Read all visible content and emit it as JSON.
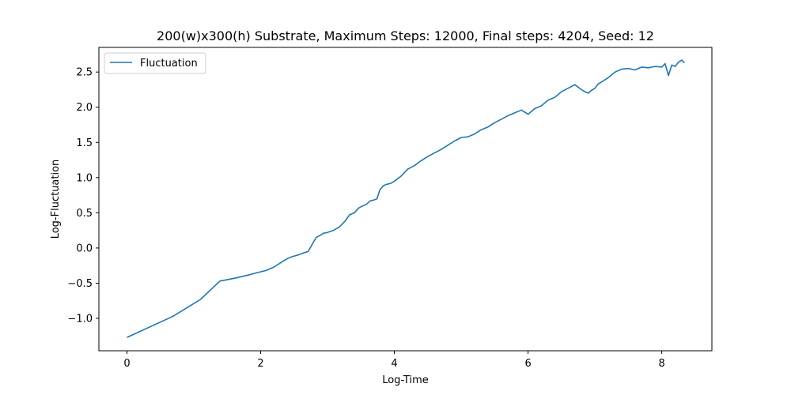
{
  "chart_data": {
    "type": "line",
    "title": "200(w)x300(h) Substrate, Maximum Steps: 12000, Final steps: 4204, Seed: 12",
    "xlabel": "Log-Time",
    "ylabel": "Log-Fluctuation",
    "xlim": [
      -0.42,
      8.75
    ],
    "ylim": [
      -1.46,
      2.85
    ],
    "xticks": [
      0,
      2,
      4,
      6,
      8
    ],
    "yticks": [
      -1.0,
      -0.5,
      0.0,
      0.5,
      1.0,
      1.5,
      2.0,
      2.5
    ],
    "xtick_labels": [
      "0",
      "2",
      "4",
      "6",
      "8"
    ],
    "ytick_labels": [
      "−1.0",
      "−0.5",
      "0.0",
      "0.5",
      "1.0",
      "1.5",
      "2.0",
      "2.5"
    ],
    "grid": false,
    "legend": "upper left",
    "series": [
      {
        "name": "Fluctuation",
        "color": "#1f77b4",
        "x": [
          0,
          0.69,
          1.1,
          1.39,
          1.61,
          1.79,
          1.95,
          2.08,
          2.2,
          2.3,
          2.4,
          2.48,
          2.56,
          2.64,
          2.71,
          2.77,
          2.83,
          2.89,
          2.94,
          3.0,
          3.09,
          3.18,
          3.26,
          3.33,
          3.4,
          3.47,
          3.53,
          3.58,
          3.64,
          3.69,
          3.74,
          3.78,
          3.83,
          3.87,
          3.91,
          3.95,
          4.0,
          4.1,
          4.2,
          4.3,
          4.4,
          4.5,
          4.6,
          4.7,
          4.8,
          4.9,
          5.0,
          5.1,
          5.2,
          5.3,
          5.4,
          5.5,
          5.6,
          5.7,
          5.8,
          5.9,
          6.0,
          6.1,
          6.2,
          6.3,
          6.4,
          6.5,
          6.6,
          6.7,
          6.8,
          6.85,
          6.9,
          6.95,
          7.0,
          7.05,
          7.1,
          7.2,
          7.3,
          7.4,
          7.5,
          7.6,
          7.7,
          7.8,
          7.9,
          8.0,
          8.05,
          8.1,
          8.15,
          8.2,
          8.25,
          8.3,
          8.34
        ],
        "y": [
          -1.27,
          -0.97,
          -0.73,
          -0.47,
          -0.43,
          -0.39,
          -0.35,
          -0.32,
          -0.27,
          -0.21,
          -0.15,
          -0.12,
          -0.1,
          -0.07,
          -0.05,
          0.05,
          0.15,
          0.18,
          0.21,
          0.22,
          0.25,
          0.3,
          0.38,
          0.47,
          0.5,
          0.57,
          0.6,
          0.62,
          0.67,
          0.68,
          0.7,
          0.82,
          0.88,
          0.9,
          0.91,
          0.92,
          0.95,
          1.02,
          1.12,
          1.17,
          1.24,
          1.3,
          1.35,
          1.4,
          1.46,
          1.52,
          1.57,
          1.58,
          1.62,
          1.68,
          1.72,
          1.78,
          1.83,
          1.88,
          1.92,
          1.96,
          1.9,
          1.98,
          2.02,
          2.1,
          2.14,
          2.22,
          2.27,
          2.32,
          2.25,
          2.22,
          2.2,
          2.24,
          2.27,
          2.33,
          2.36,
          2.42,
          2.5,
          2.54,
          2.55,
          2.53,
          2.57,
          2.56,
          2.58,
          2.57,
          2.62,
          2.45,
          2.6,
          2.58,
          2.64,
          2.67,
          2.63
        ]
      }
    ]
  }
}
